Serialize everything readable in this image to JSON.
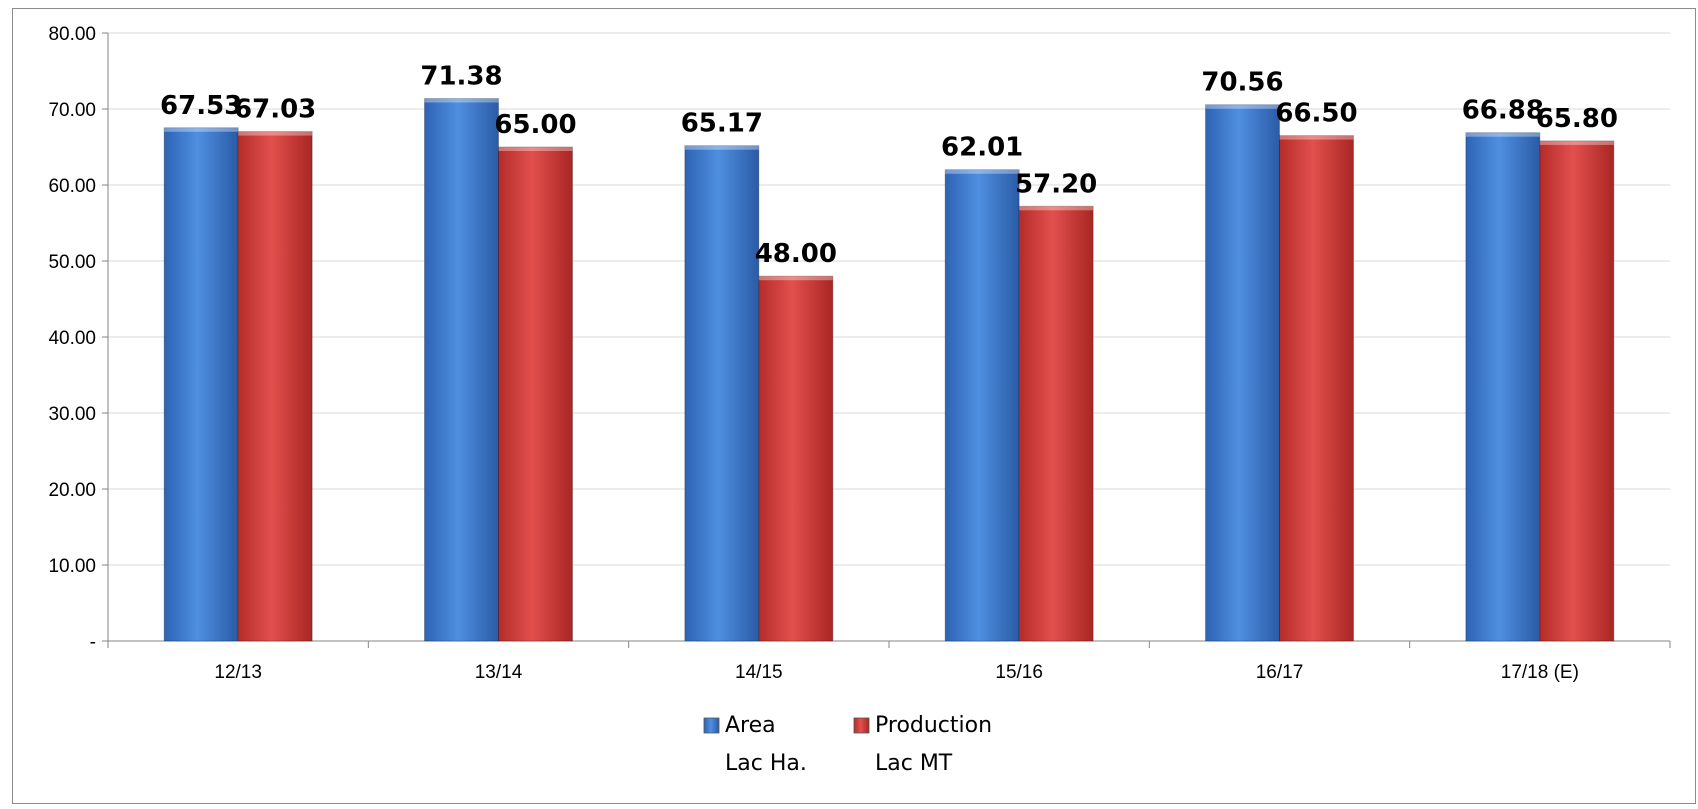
{
  "chart_data": {
    "type": "bar",
    "categories": [
      "12/13",
      "13/14",
      "14/15",
      "15/16",
      "16/17",
      "17/18 (E)"
    ],
    "series": [
      {
        "name": "Area",
        "unit": "Lac Ha.",
        "color": "#3a78d0",
        "values": [
          67.53,
          71.38,
          65.17,
          62.01,
          70.56,
          66.88
        ]
      },
      {
        "name": "Production",
        "unit": "Lac MT",
        "color": "#d63a37",
        "values": [
          67.03,
          65.0,
          48.0,
          57.2,
          66.5,
          65.8
        ]
      }
    ],
    "y_ticks": [
      "-",
      "10.00",
      "20.00",
      "30.00",
      "40.00",
      "50.00",
      "60.00",
      "70.00",
      "80.00"
    ],
    "ylim": [
      0,
      80
    ],
    "ytick_step": 10,
    "value_format": 2,
    "grid": true,
    "legend": "bottom-center",
    "title": "",
    "xlabel": "",
    "ylabel": ""
  }
}
